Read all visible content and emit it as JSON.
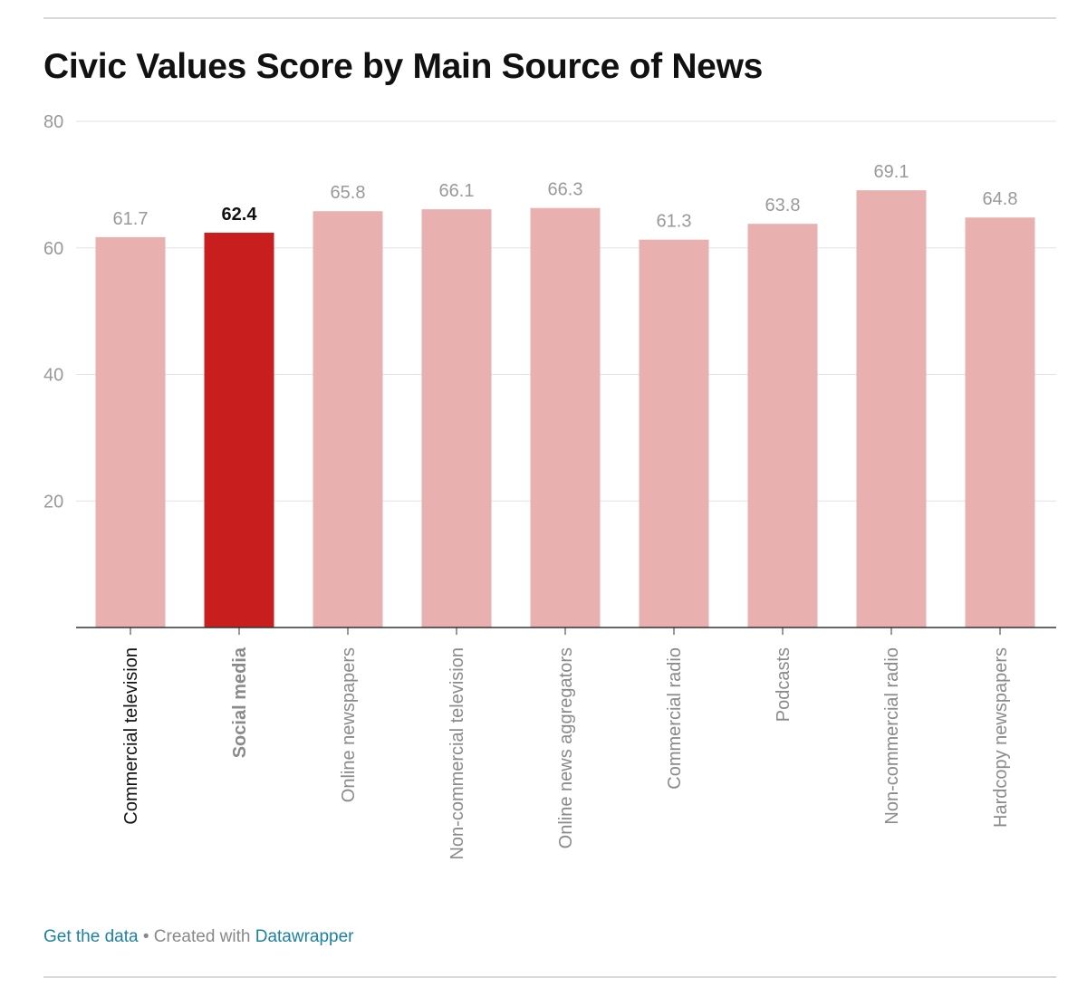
{
  "title": "Civic Values Score by Main Source of News",
  "footer": {
    "get_data": "Get the data",
    "separator": " • Created with ",
    "tool": "Datawrapper"
  },
  "colors": {
    "highlight_bar": "#c81e1e",
    "bar": "#e9b0b0",
    "value_label": "#999999",
    "highlight_value_label": "#111111",
    "grid": "#e2e2e2",
    "axis_tick_label": "#999999",
    "link": "#1d81a2"
  },
  "chart_data": {
    "type": "bar",
    "title": "Civic Values Score by Main Source of News",
    "categories": [
      "Commercial television",
      "Social media",
      "Online newspapers",
      "Non-commercial television",
      "Online news aggregators",
      "Commercial radio",
      "Podcasts",
      "Non-commercial radio",
      "Hardcopy newspapers"
    ],
    "values": [
      61.7,
      62.4,
      65.8,
      66.1,
      66.3,
      61.3,
      63.8,
      69.1,
      64.8
    ],
    "value_labels": [
      "61.7",
      "62.4",
      "65.8",
      "66.1",
      "66.3",
      "61.3",
      "63.8",
      "69.1",
      "64.8"
    ],
    "highlighted": "Social media",
    "ylim": [
      0,
      80
    ],
    "yticks": [
      20,
      40,
      60,
      80
    ],
    "ytick_labels": [
      "20",
      "40",
      "60",
      "80"
    ],
    "xlabel": "",
    "ylabel": "",
    "grid": true,
    "legend": false,
    "category_label_orientation": "vertical"
  }
}
